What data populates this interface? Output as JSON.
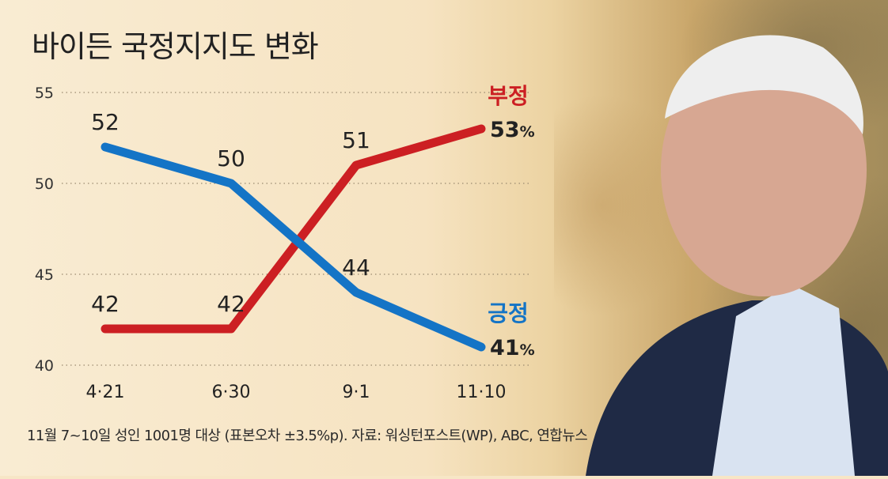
{
  "title": "바이든 국정지지도 변화",
  "footnote": "11월 7~10일 성인 1001명 대상 (표본오차 ±3.5%p). 자료: 워싱턴포스트(WP), ABC, 연합뉴스",
  "colors": {
    "negative": "#cc1f23",
    "positive": "#1474c6",
    "grid": "#9a8a70"
  },
  "chart_data": {
    "type": "line",
    "title": "바이든 국정지지도 변화",
    "categories": [
      "4·21",
      "6·30",
      "9·1",
      "11·10"
    ],
    "yticks": [
      "55",
      "50",
      "45",
      "40"
    ],
    "ylim": [
      40,
      55
    ],
    "grid": true,
    "series": [
      {
        "key": "negative",
        "name": "부정",
        "values": [
          42,
          42,
          51,
          53
        ],
        "labels": [
          "42",
          "42",
          "51",
          ""
        ],
        "end_value": "53",
        "end_unit": "%"
      },
      {
        "key": "positive",
        "name": "긍정",
        "values": [
          52,
          50,
          44,
          41
        ],
        "labels": [
          "52",
          "50",
          "44",
          ""
        ],
        "end_value": "41",
        "end_unit": "%"
      }
    ]
  }
}
